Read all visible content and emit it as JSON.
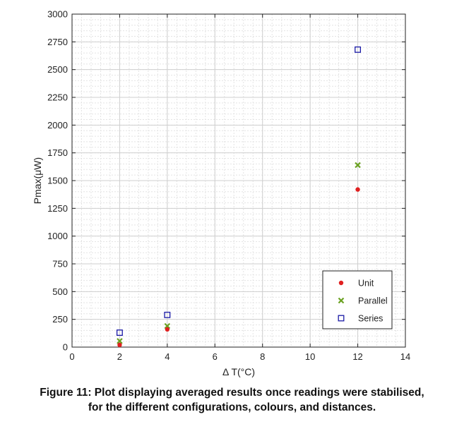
{
  "chart_data": {
    "type": "scatter",
    "xlabel": "Δ T(°C)",
    "ylabel": "Pmax(μW)",
    "xlim": [
      0,
      14
    ],
    "ylim": [
      0,
      3000
    ],
    "xticks": [
      0,
      2,
      4,
      6,
      8,
      10,
      12,
      14
    ],
    "yticks": [
      0,
      250,
      500,
      750,
      1000,
      1250,
      1500,
      1750,
      2000,
      2250,
      2500,
      2750,
      3000
    ],
    "grid": true,
    "legend_position": "bottom-right",
    "series": [
      {
        "name": "Unit",
        "marker": "circle",
        "color": "#e02020",
        "x": [
          2,
          4,
          12
        ],
        "y": [
          20,
          160,
          1420
        ]
      },
      {
        "name": "Parallel",
        "marker": "x",
        "color": "#6aa121",
        "x": [
          2,
          4,
          12
        ],
        "y": [
          55,
          190,
          1640
        ]
      },
      {
        "name": "Series",
        "marker": "square",
        "color": "#1a1aa6",
        "x": [
          2,
          4,
          12
        ],
        "y": [
          130,
          290,
          2680
        ]
      }
    ]
  },
  "caption": {
    "line1": "Figure 11: Plot displaying averaged results once readings were stabilised,",
    "line2": "for the different configurations, colours, and distances."
  }
}
